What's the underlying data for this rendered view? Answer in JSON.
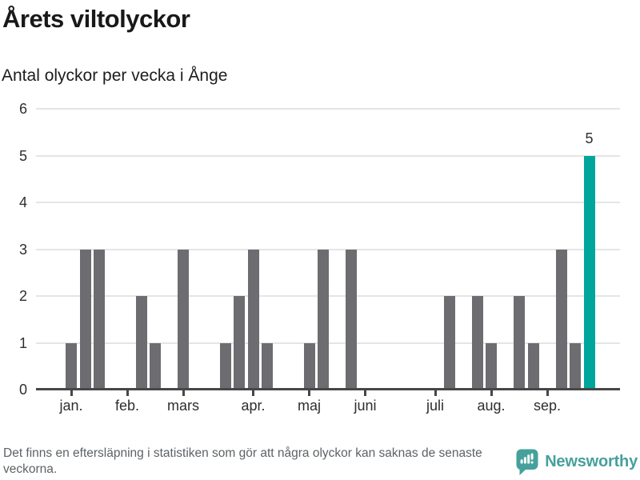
{
  "header": {
    "title": "Årets viltolyckor",
    "subtitle": "Antal olyckor per vecka i Ånge"
  },
  "chart_data": {
    "type": "bar",
    "title": "Årets viltolyckor",
    "subtitle": "Antal olyckor per vecka i Ånge",
    "xlabel": "",
    "ylabel": "",
    "x_unit": "week",
    "ylim": [
      0,
      6
    ],
    "yticks": [
      0,
      1,
      2,
      3,
      4,
      5,
      6
    ],
    "categories_note": "weekly bars, weeks 1-38 of the year, zero = no bar drawn",
    "values": [
      1,
      3,
      3,
      0,
      0,
      2,
      1,
      0,
      3,
      0,
      0,
      1,
      2,
      3,
      1,
      0,
      0,
      1,
      3,
      0,
      3,
      0,
      0,
      0,
      0,
      0,
      0,
      2,
      0,
      2,
      1,
      0,
      2,
      1,
      0,
      3,
      1,
      5
    ],
    "highlight_index": 37,
    "highlight_value_label": "5",
    "month_ticks": [
      {
        "label": "jan.",
        "week_pos": 0
      },
      {
        "label": "feb.",
        "week_pos": 4
      },
      {
        "label": "mars",
        "week_pos": 8
      },
      {
        "label": "apr.",
        "week_pos": 13
      },
      {
        "label": "maj",
        "week_pos": 17
      },
      {
        "label": "juni",
        "week_pos": 21
      },
      {
        "label": "juli",
        "week_pos": 26
      },
      {
        "label": "aug.",
        "week_pos": 30
      },
      {
        "label": "sep.",
        "week_pos": 34
      }
    ],
    "grid": "horizontal only",
    "legend": "none",
    "colors": {
      "bar": "#6d6d71",
      "highlight": "#00a59c",
      "gridline": "#e5e5e5",
      "axis": "#474747",
      "text": "#2e2e2e"
    }
  },
  "footer": {
    "disclaimer": "Det finns en eftersläpning i statistiken som gör att några olyckor kan saknas de senaste veckorna.",
    "brand": "Newsworthy"
  }
}
